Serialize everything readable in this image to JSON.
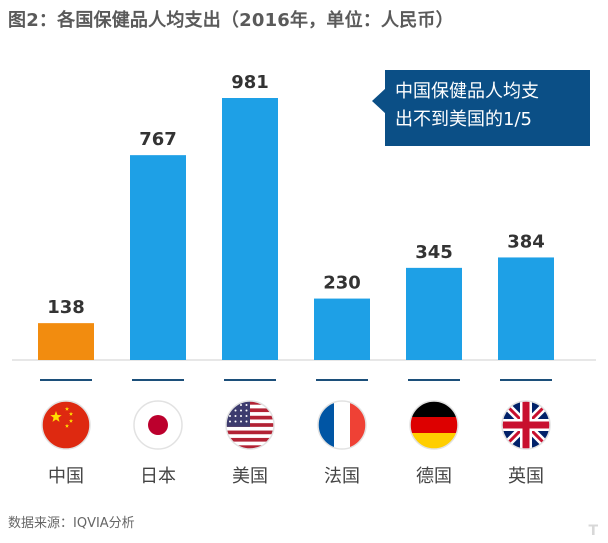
{
  "chart_data": {
    "type": "bar",
    "title": "图2：各国保健品人均支出（2016年，单位：人民币）",
    "categories": [
      "中国",
      "日本",
      "美国",
      "法国",
      "德国",
      "英国"
    ],
    "values": [
      138,
      767,
      981,
      230,
      345,
      384
    ],
    "ylim": [
      0,
      1000
    ],
    "grid": false,
    "colors": {
      "highlight": "#f28c0f",
      "default": "#1ea0e6",
      "axis": "#cfcfcf",
      "underline": "#1c4f7a"
    },
    "flags": [
      "china-flag-icon",
      "japan-flag-icon",
      "usa-flag-icon",
      "france-flag-icon",
      "germany-flag-icon",
      "uk-flag-icon"
    ],
    "annotation": "中国保健品人均支出不到美国的1/5"
  },
  "callout": {
    "line1": "中国保健品人均支",
    "line2": "出不到美国的1/5"
  },
  "source": "数据来源：IQVIA分析"
}
